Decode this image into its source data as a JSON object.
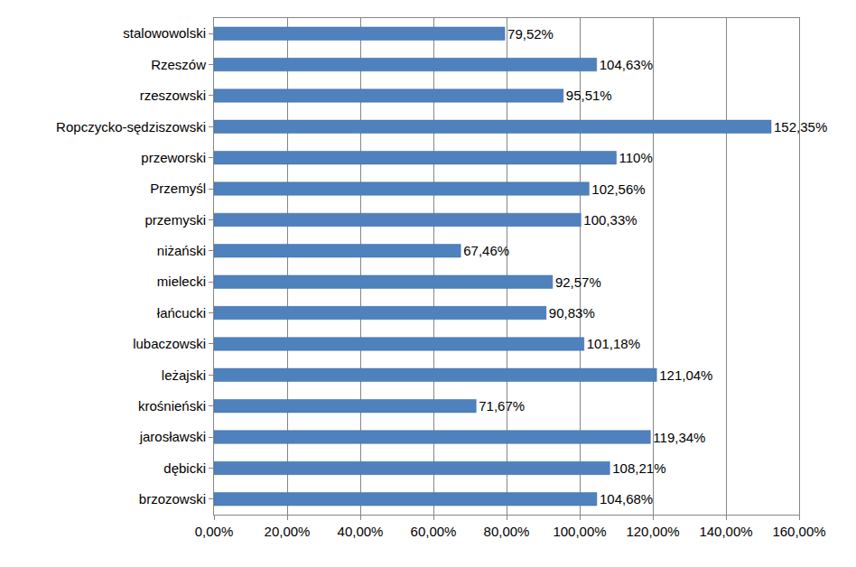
{
  "chart_data": {
    "type": "bar",
    "orientation": "horizontal",
    "categories": [
      "brzozowski",
      "dębicki",
      "jarosławski",
      "krośnieński",
      "leżajski",
      "lubaczowski",
      "łańcucki",
      "mielecki",
      "niżański",
      "przemyski",
      "Przemyśl",
      "przeworski",
      "Ropczycko-sędziszowski",
      "rzeszowski",
      "Rzeszów",
      "stalowowolski"
    ],
    "values": [
      104.68,
      108.21,
      119.34,
      71.67,
      121.04,
      101.18,
      90.83,
      92.57,
      67.46,
      100.33,
      102.56,
      110,
      152.35,
      95.51,
      104.63,
      79.52
    ],
    "value_labels": [
      "104,68%",
      "108,21%",
      "119,34%",
      "71,67%",
      "121,04%",
      "101,18%",
      "90,83%",
      "92,57%",
      "67,46%",
      "100,33%",
      "102,56%",
      "110%",
      "152,35%",
      "95,51%",
      "104,63%",
      "79,52%"
    ],
    "data_labels": true,
    "color": "#4f81bd",
    "xlim": [
      0,
      160
    ],
    "xticks": [
      {
        "value": 0,
        "label": "0,00%"
      },
      {
        "value": 20,
        "label": "20,00%"
      },
      {
        "value": 40,
        "label": "40,00%"
      },
      {
        "value": 60,
        "label": "60,00%"
      },
      {
        "value": 80,
        "label": "80,00%"
      },
      {
        "value": 100,
        "label": "100,00%"
      },
      {
        "value": 120,
        "label": "120,00%"
      },
      {
        "value": 140,
        "label": "140,00%"
      },
      {
        "value": 160,
        "label": "160,00%"
      }
    ],
    "grid": true
  }
}
